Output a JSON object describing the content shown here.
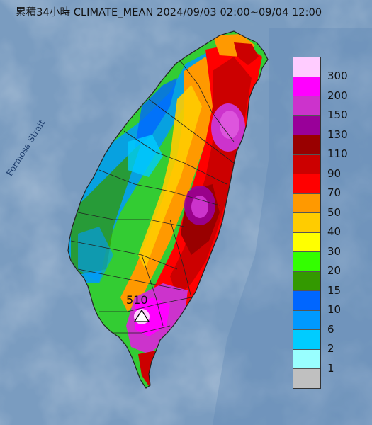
{
  "title": "累積34小時 CLIMATE_MEAN 2024/09/03 02:00~09/04 12:00",
  "strait_label": "Formosa Strait",
  "max_marker": {
    "value_label": "510",
    "icon": "triangle-marker-icon"
  },
  "legend": {
    "bins": [
      {
        "label": "300",
        "color": "#ffccff"
      },
      {
        "label": "200",
        "color": "#ff00ff"
      },
      {
        "label": "150",
        "color": "#cc33cc"
      },
      {
        "label": "130",
        "color": "#990099"
      },
      {
        "label": "110",
        "color": "#990000"
      },
      {
        "label": "90",
        "color": "#cc0000"
      },
      {
        "label": "70",
        "color": "#ff0000"
      },
      {
        "label": "50",
        "color": "#ff9900"
      },
      {
        "label": "40",
        "color": "#ffcc00"
      },
      {
        "label": "30",
        "color": "#ffff00"
      },
      {
        "label": "20",
        "color": "#33ff00"
      },
      {
        "label": "15",
        "color": "#339900"
      },
      {
        "label": "10",
        "color": "#0066ff"
      },
      {
        "label": "6",
        "color": "#0099ff"
      },
      {
        "label": "2",
        "color": "#00ccff"
      },
      {
        "label": "1",
        "color": "#99ffff"
      },
      {
        "label": "",
        "color": "#c0c0c0"
      }
    ]
  },
  "colors": {
    "sea": "#7f9fbf",
    "land_outline": "#222222"
  }
}
